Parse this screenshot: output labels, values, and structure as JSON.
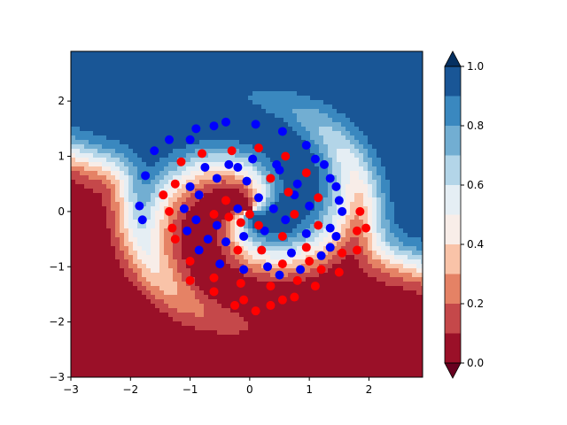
{
  "chart_data": {
    "type": "scatter",
    "title": "",
    "xlabel": "",
    "ylabel": "",
    "xlim": [
      -3,
      2.9
    ],
    "ylim": [
      -3,
      2.9
    ],
    "x_ticks": [
      -3,
      -2,
      -1,
      0,
      1,
      2
    ],
    "y_ticks": [
      -3,
      -2,
      -1,
      0,
      1,
      2
    ],
    "x_tick_labels": [
      "−3",
      "−2",
      "−1",
      "0",
      "1",
      "2"
    ],
    "y_tick_labels": [
      "−3",
      "−2",
      "−1",
      "0",
      "1",
      "2"
    ],
    "background": "filled contour of predicted probability (decision surface) of a two-spiral classifier",
    "colormap": "RdBu",
    "contour_levels": [
      0.0,
      0.1,
      0.2,
      0.3,
      0.4,
      0.5,
      0.6,
      0.7,
      0.8,
      0.9,
      1.0
    ],
    "level_colors": [
      "#67001f",
      "#9a1028",
      "#c5484a",
      "#e58265",
      "#f9c3a8",
      "#f8ede8",
      "#e5eef4",
      "#b3d5e8",
      "#72aed2",
      "#3a88bf",
      "#195696",
      "#053061"
    ],
    "colorbar": {
      "ticks": [
        0.0,
        0.2,
        0.4,
        0.6,
        0.8,
        1.0
      ],
      "tick_labels": [
        "0.0",
        "0.2",
        "0.4",
        "0.6",
        "0.8",
        "1.0"
      ],
      "extend": "both"
    },
    "series": [
      {
        "color": "#0000ff",
        "points": [
          [
            -0.35,
            0.85
          ],
          [
            0.05,
            0.95
          ],
          [
            0.45,
            0.85
          ],
          [
            0.8,
            0.5
          ],
          [
            1.0,
            0.1
          ],
          [
            0.95,
            -0.4
          ],
          [
            0.7,
            -0.75
          ],
          [
            0.3,
            -1.0
          ],
          [
            -0.1,
            -1.05
          ],
          [
            -0.5,
            -0.95
          ],
          [
            -0.85,
            -0.7
          ],
          [
            -1.05,
            -0.35
          ],
          [
            -1.1,
            0.05
          ],
          [
            -1.0,
            0.45
          ],
          [
            -0.75,
            0.8
          ],
          [
            -1.35,
            1.3
          ],
          [
            -0.9,
            1.5
          ],
          [
            -0.4,
            1.62
          ],
          [
            0.1,
            1.58
          ],
          [
            0.55,
            1.45
          ],
          [
            0.95,
            1.2
          ],
          [
            1.25,
            0.85
          ],
          [
            1.45,
            0.45
          ],
          [
            1.55,
            0.0
          ],
          [
            1.45,
            -0.45
          ],
          [
            1.2,
            -0.8
          ],
          [
            0.85,
            -1.05
          ],
          [
            0.5,
            -1.15
          ],
          [
            -1.6,
            1.1
          ],
          [
            -1.75,
            0.65
          ],
          [
            -1.85,
            0.1
          ],
          [
            -1.0,
            1.3
          ],
          [
            -0.6,
            1.55
          ],
          [
            1.1,
            0.95
          ],
          [
            1.35,
            0.6
          ],
          [
            1.5,
            0.2
          ],
          [
            1.35,
            -0.65
          ],
          [
            -0.55,
            -0.25
          ],
          [
            -0.2,
            0.05
          ],
          [
            0.15,
            0.25
          ],
          [
            0.4,
            0.05
          ],
          [
            0.25,
            -0.35
          ],
          [
            -0.1,
            -0.45
          ],
          [
            -0.4,
            -0.55
          ],
          [
            -0.7,
            -0.5
          ],
          [
            -0.9,
            -0.15
          ],
          [
            -0.85,
            0.3
          ],
          [
            -0.55,
            0.6
          ],
          [
            0.6,
            -0.15
          ],
          [
            0.75,
            0.3
          ],
          [
            0.5,
            0.75
          ],
          [
            -0.2,
            0.8
          ],
          [
            -1.8,
            -0.15
          ],
          [
            1.35,
            -0.3
          ],
          [
            -0.05,
            0.55
          ]
        ]
      },
      {
        "color": "#ff0000",
        "points": [
          [
            -0.3,
            1.1
          ],
          [
            0.15,
            1.15
          ],
          [
            0.6,
            1.0
          ],
          [
            0.95,
            0.7
          ],
          [
            1.15,
            0.25
          ],
          [
            1.15,
            -0.25
          ],
          [
            0.95,
            -0.65
          ],
          [
            0.55,
            -0.95
          ],
          [
            -1.25,
            0.5
          ],
          [
            -1.35,
            0.0
          ],
          [
            -1.25,
            -0.5
          ],
          [
            -1.0,
            -0.9
          ],
          [
            -0.6,
            -1.2
          ],
          [
            -0.15,
            -1.3
          ],
          [
            0.35,
            -1.35
          ],
          [
            0.8,
            -1.25
          ],
          [
            1.2,
            -1.05
          ],
          [
            1.55,
            -0.75
          ],
          [
            1.8,
            -0.35
          ],
          [
            1.85,
            0.0
          ],
          [
            -1.15,
            0.9
          ],
          [
            -0.8,
            1.05
          ],
          [
            0.0,
            -0.05
          ],
          [
            0.15,
            -0.25
          ],
          [
            -0.15,
            -0.2
          ],
          [
            -0.35,
            -0.1
          ],
          [
            -0.4,
            0.2
          ],
          [
            -0.6,
            -0.05
          ],
          [
            -0.2,
            -0.7
          ],
          [
            0.2,
            -0.7
          ],
          [
            0.55,
            -0.45
          ],
          [
            0.75,
            -0.05
          ],
          [
            0.65,
            0.35
          ],
          [
            0.35,
            0.6
          ],
          [
            -1.0,
            -1.25
          ],
          [
            -0.6,
            -1.45
          ],
          [
            -0.1,
            -1.6
          ],
          [
            0.35,
            -1.7
          ],
          [
            0.75,
            -1.55
          ],
          [
            1.1,
            -1.35
          ],
          [
            1.5,
            -1.1
          ],
          [
            1.8,
            -0.7
          ],
          [
            1.95,
            -0.3
          ],
          [
            -0.25,
            -1.7
          ],
          [
            0.1,
            -1.8
          ],
          [
            0.55,
            -1.6
          ],
          [
            -1.45,
            0.3
          ],
          [
            -1.3,
            -0.3
          ],
          [
            1.0,
            -0.9
          ]
        ]
      }
    ]
  }
}
